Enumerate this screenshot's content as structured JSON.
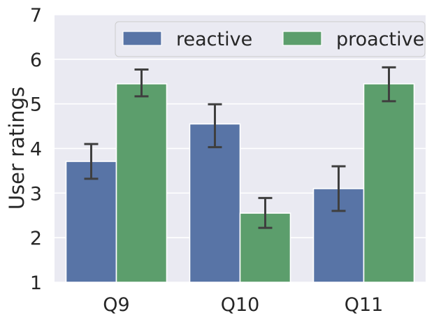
{
  "chart_data": {
    "type": "bar",
    "title": "",
    "xlabel": "",
    "ylabel": "User ratings",
    "ylim": [
      1,
      7
    ],
    "yticks": [
      1,
      2,
      3,
      4,
      5,
      6,
      7
    ],
    "categories": [
      "Q9",
      "Q10",
      "Q11"
    ],
    "grid": true,
    "legend_position": "top-right",
    "legend_columns": 2,
    "series": [
      {
        "name": "reactive",
        "color": "#5874a6",
        "values": [
          3.71,
          4.55,
          3.1
        ],
        "error_low": [
          3.32,
          4.03,
          2.6
        ],
        "error_high": [
          4.1,
          4.99,
          3.6
        ]
      },
      {
        "name": "proactive",
        "color": "#5c9e6c",
        "values": [
          5.45,
          2.55,
          5.45
        ],
        "error_low": [
          5.17,
          2.22,
          5.06
        ],
        "error_high": [
          5.77,
          2.89,
          5.82
        ]
      }
    ],
    "background_color": "#eaeaf2",
    "errorbar_color": "#3f3f3f"
  }
}
